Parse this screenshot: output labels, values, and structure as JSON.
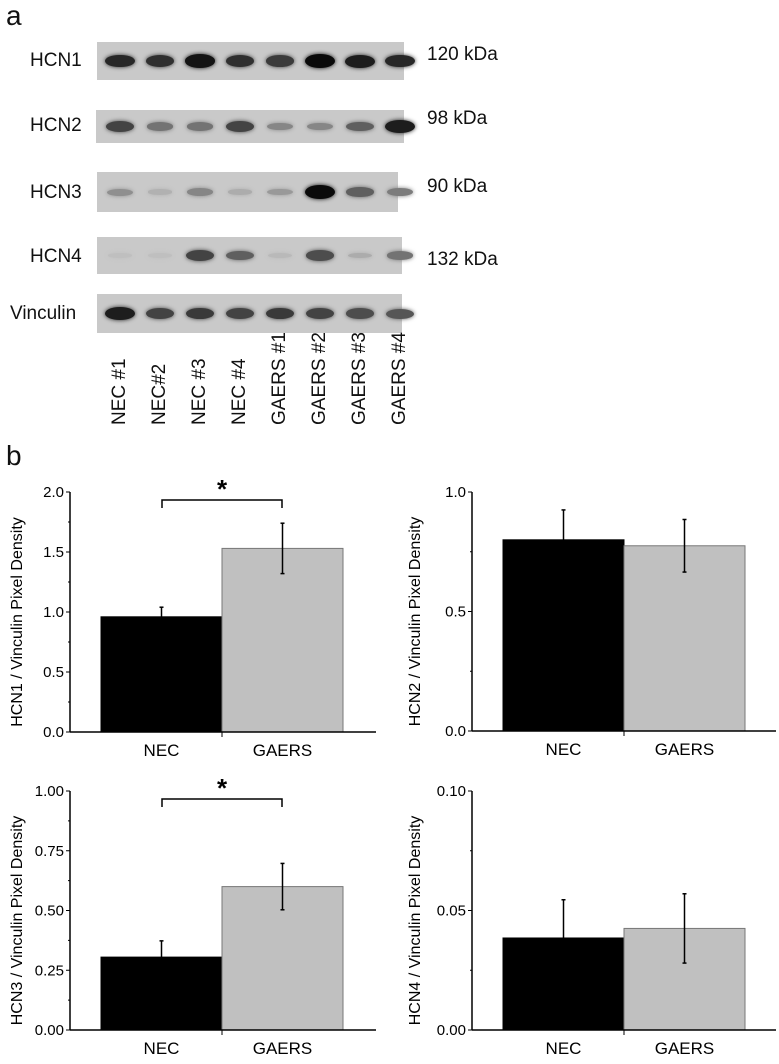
{
  "panel_a": {
    "label": "a",
    "rows": [
      {
        "name": "HCN1",
        "kda": "120 kDa",
        "intensity": [
          0.85,
          0.8,
          0.95,
          0.8,
          0.75,
          1.0,
          0.9,
          0.85
        ]
      },
      {
        "name": "HCN2",
        "kda": "98 kDa",
        "intensity": [
          0.7,
          0.45,
          0.45,
          0.7,
          0.35,
          0.35,
          0.55,
          0.9
        ]
      },
      {
        "name": "HCN3",
        "kda": "90 kDa",
        "intensity": [
          0.3,
          0.12,
          0.35,
          0.15,
          0.25,
          1.0,
          0.55,
          0.4
        ]
      },
      {
        "name": "HCN4",
        "kda": "132 kDa",
        "intensity": [
          0.05,
          0.05,
          0.7,
          0.55,
          0.08,
          0.65,
          0.15,
          0.45
        ]
      },
      {
        "name": "Vinculin",
        "kda": "",
        "intensity": [
          0.9,
          0.7,
          0.75,
          0.7,
          0.75,
          0.7,
          0.65,
          0.6
        ]
      }
    ],
    "lanes": [
      "NEC #1",
      "NEC#2",
      "NEC #3",
      "NEC #4",
      "GAERS #1",
      "GAERS #2",
      "GAERS #3",
      "GAERS #4"
    ]
  },
  "panel_b": {
    "label": "b"
  },
  "chart_data": [
    {
      "type": "bar",
      "title": "",
      "categories": [
        "NEC",
        "GAERS"
      ],
      "values": [
        0.96,
        1.53
      ],
      "errors": [
        0.08,
        0.21
      ],
      "colors": [
        "#000000",
        "#c0c0c0"
      ],
      "xlabel": "",
      "ylabel": "HCN1 / Vinculin Pixel Density",
      "ylim": [
        0,
        2.0
      ],
      "yticks": [
        "0.0",
        "0.5",
        "1.0",
        "1.5",
        "2.0"
      ],
      "significance": "*"
    },
    {
      "type": "bar",
      "title": "",
      "categories": [
        "NEC",
        "GAERS"
      ],
      "values": [
        0.8,
        0.775
      ],
      "errors": [
        0.125,
        0.11
      ],
      "colors": [
        "#000000",
        "#c0c0c0"
      ],
      "xlabel": "",
      "ylabel": "HCN2 / Vinculin Pixel Density",
      "ylim": [
        0,
        1.0
      ],
      "yticks": [
        "0.0",
        "0.5",
        "1.0"
      ],
      "significance": ""
    },
    {
      "type": "bar",
      "title": "",
      "categories": [
        "NEC",
        "GAERS"
      ],
      "values": [
        0.305,
        0.6
      ],
      "errors": [
        0.068,
        0.097
      ],
      "colors": [
        "#000000",
        "#c0c0c0"
      ],
      "xlabel": "",
      "ylabel": "HCN3 / Vinculin Pixel Density",
      "ylim": [
        0,
        1.0
      ],
      "yticks": [
        "0.00",
        "0.25",
        "0.50",
        "0.75",
        "1.00"
      ],
      "significance": "*"
    },
    {
      "type": "bar",
      "title": "",
      "categories": [
        "NEC",
        "GAERS"
      ],
      "values": [
        0.0385,
        0.0425
      ],
      "errors": [
        0.016,
        0.0145
      ],
      "colors": [
        "#000000",
        "#c0c0c0"
      ],
      "xlabel": "",
      "ylabel": "HCN4 / Vinculin Pixel Density",
      "ylim": [
        0,
        0.1
      ],
      "yticks": [
        "0.00",
        "0.05",
        "0.10"
      ],
      "significance": ""
    }
  ]
}
